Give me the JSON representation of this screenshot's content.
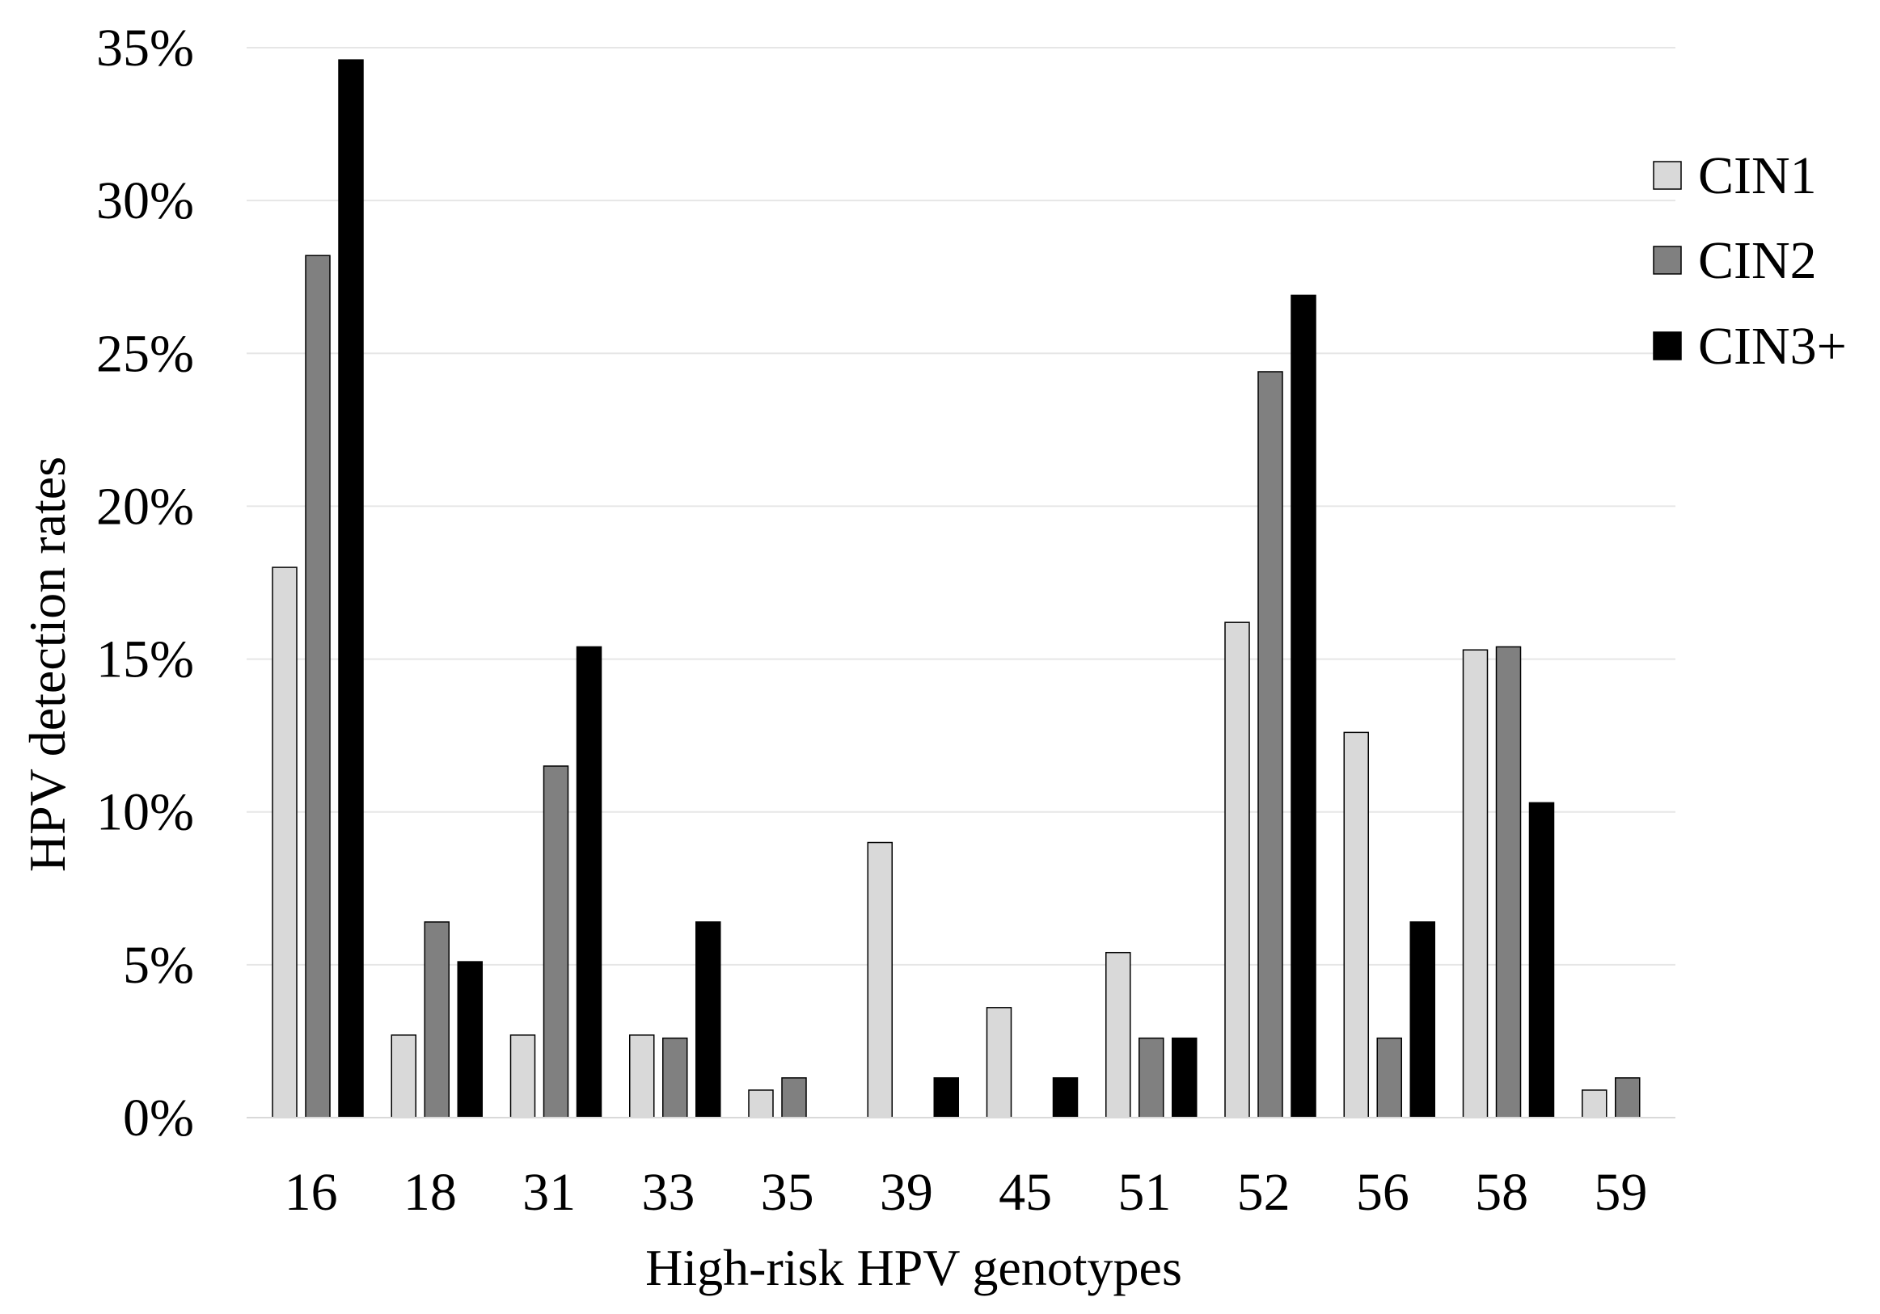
{
  "chart_data": {
    "type": "bar",
    "title": "",
    "xlabel": "High-risk HPV genotypes",
    "ylabel": "HPV  detection rates",
    "categories": [
      "16",
      "18",
      "31",
      "33",
      "35",
      "39",
      "45",
      "51",
      "52",
      "56",
      "58",
      "59"
    ],
    "series": [
      {
        "name": "CIN1",
        "color": "#d9d9d9",
        "values": [
          18.0,
          2.7,
          2.7,
          2.7,
          0.9,
          9.0,
          3.6,
          5.4,
          16.2,
          12.6,
          15.3,
          0.9
        ]
      },
      {
        "name": "CIN2",
        "color": "#808080",
        "values": [
          28.2,
          6.4,
          11.5,
          2.6,
          1.3,
          0.0,
          0.0,
          2.6,
          24.4,
          2.6,
          15.4,
          1.3
        ]
      },
      {
        "name": "CIN3+",
        "color": "#000000",
        "values": [
          34.6,
          5.1,
          15.4,
          6.4,
          0.0,
          1.3,
          1.3,
          2.6,
          26.9,
          6.4,
          10.3,
          0.0
        ]
      }
    ],
    "ylim": [
      0,
      35
    ],
    "yticks": [
      0,
      5,
      10,
      15,
      20,
      25,
      30,
      35
    ],
    "ytick_labels": [
      "0%",
      "5%",
      "10%",
      "15%",
      "20%",
      "25%",
      "30%",
      "35%"
    ],
    "grid": true,
    "legend_position": "right"
  }
}
